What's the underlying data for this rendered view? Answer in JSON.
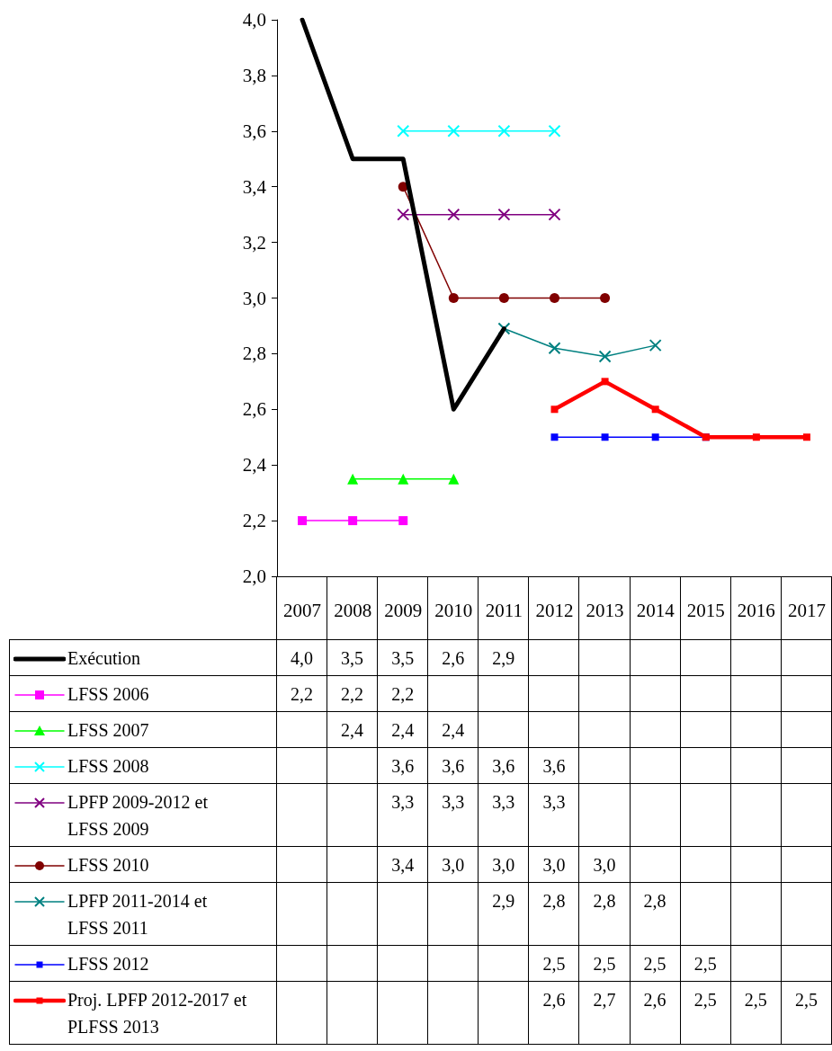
{
  "chart_data": {
    "type": "line",
    "categories": [
      "2007",
      "2008",
      "2009",
      "2010",
      "2011",
      "2012",
      "2013",
      "2014",
      "2015",
      "2016",
      "2017"
    ],
    "ylim": [
      2.0,
      4.0
    ],
    "yticks": [
      {
        "value": 2.0,
        "label": "2,0"
      },
      {
        "value": 2.2,
        "label": "2,2"
      },
      {
        "value": 2.4,
        "label": "2,4"
      },
      {
        "value": 2.6,
        "label": "2,6"
      },
      {
        "value": 2.8,
        "label": "2,8"
      },
      {
        "value": 3.0,
        "label": "3,0"
      },
      {
        "value": 3.2,
        "label": "3,2"
      },
      {
        "value": 3.4,
        "label": "3,4"
      },
      {
        "value": 3.6,
        "label": "3,6"
      },
      {
        "value": 3.8,
        "label": "3,8"
      },
      {
        "value": 4.0,
        "label": "4,0"
      }
    ],
    "grid": false,
    "legend": "bottom",
    "series": [
      {
        "name": "Exécution",
        "color": "#000000",
        "marker": "none",
        "values": [
          4.0,
          3.5,
          3.5,
          2.6,
          2.89,
          null,
          null,
          null,
          null,
          null,
          null
        ],
        "value_labels": [
          "4,0",
          "3,5",
          "3,5",
          "2,6",
          "2,9",
          null,
          null,
          null,
          null,
          null,
          null
        ]
      },
      {
        "name": "LFSS 2006",
        "color": "#ff00ff",
        "marker": "square",
        "values": [
          2.2,
          2.2,
          2.2,
          null,
          null,
          null,
          null,
          null,
          null,
          null,
          null
        ],
        "value_labels": [
          "2,2",
          "2,2",
          "2,2",
          null,
          null,
          null,
          null,
          null,
          null,
          null,
          null
        ]
      },
      {
        "name": "LFSS 2007",
        "color": "#00ff00",
        "marker": "triangle",
        "values": [
          null,
          2.35,
          2.35,
          2.35,
          null,
          null,
          null,
          null,
          null,
          null,
          null
        ],
        "value_labels": [
          null,
          "2,4",
          "2,4",
          "2,4",
          null,
          null,
          null,
          null,
          null,
          null,
          null
        ]
      },
      {
        "name": "LFSS 2008",
        "color": "#00ffff",
        "marker": "cross",
        "values": [
          null,
          null,
          3.6,
          3.6,
          3.6,
          3.6,
          null,
          null,
          null,
          null,
          null
        ],
        "value_labels": [
          null,
          null,
          "3,6",
          "3,6",
          "3,6",
          "3,6",
          null,
          null,
          null,
          null,
          null
        ]
      },
      {
        "name": "LPFP 2009-2012 et LFSS 2009",
        "color": "#800080",
        "marker": "cross",
        "values": [
          null,
          null,
          3.3,
          3.3,
          3.3,
          3.3,
          null,
          null,
          null,
          null,
          null
        ],
        "value_labels": [
          null,
          null,
          "3,3",
          "3,3",
          "3,3",
          "3,3",
          null,
          null,
          null,
          null,
          null
        ]
      },
      {
        "name": "LFSS 2010",
        "color": "#800000",
        "marker": "circle",
        "values": [
          null,
          null,
          3.4,
          3.0,
          3.0,
          3.0,
          3.0,
          null,
          null,
          null,
          null
        ],
        "value_labels": [
          null,
          null,
          "3,4",
          "3,0",
          "3,0",
          "3,0",
          "3,0",
          null,
          null,
          null,
          null
        ]
      },
      {
        "name": "LPFP 2011-2014 et LFSS 2011",
        "color": "#008080",
        "marker": "cross",
        "values": [
          null,
          null,
          null,
          null,
          2.89,
          2.82,
          2.79,
          2.83,
          null,
          null,
          null
        ],
        "value_labels": [
          null,
          null,
          null,
          null,
          "2,9",
          "2,8",
          "2,8",
          "2,8",
          null,
          null,
          null
        ]
      },
      {
        "name": "LFSS 2012",
        "color": "#0000ff",
        "marker": "square",
        "values": [
          null,
          null,
          null,
          null,
          null,
          2.5,
          2.5,
          2.5,
          2.5,
          null,
          null
        ],
        "value_labels": [
          null,
          null,
          null,
          null,
          null,
          "2,5",
          "2,5",
          "2,5",
          "2,5",
          null,
          null
        ]
      },
      {
        "name": "Proj. LPFP 2012-2017 et PLFSS 2013",
        "color": "#ff0000",
        "marker": "square",
        "values": [
          null,
          null,
          null,
          null,
          null,
          2.6,
          2.7,
          2.6,
          2.5,
          2.5,
          2.5
        ],
        "value_labels": [
          null,
          null,
          null,
          null,
          null,
          "2,6",
          "2,7",
          "2,6",
          "2,5",
          "2,5",
          "2,5"
        ]
      }
    ]
  }
}
